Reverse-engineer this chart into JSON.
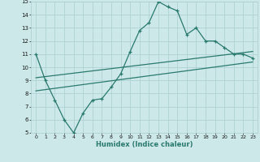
{
  "xlabel": "Humidex (Indice chaleur)",
  "xlim": [
    -0.5,
    23.5
  ],
  "ylim": [
    5,
    15
  ],
  "xticks": [
    0,
    1,
    2,
    3,
    4,
    5,
    6,
    7,
    8,
    9,
    10,
    11,
    12,
    13,
    14,
    15,
    16,
    17,
    18,
    19,
    20,
    21,
    22,
    23
  ],
  "yticks": [
    5,
    6,
    7,
    8,
    9,
    10,
    11,
    12,
    13,
    14,
    15
  ],
  "bg_color": "#cce8e8",
  "grid_color": "#aacece",
  "line_color": "#2a7a6e",
  "line1_x": [
    0,
    1,
    2,
    3,
    4,
    5,
    6,
    7,
    8,
    9,
    10,
    11,
    12,
    13,
    14,
    15,
    16,
    17,
    18,
    19,
    20,
    21,
    22,
    23
  ],
  "line1_y": [
    11,
    9,
    7.5,
    6,
    5,
    6.5,
    7.5,
    7.6,
    8.5,
    9.5,
    11.2,
    12.8,
    13.4,
    15,
    14.6,
    14.3,
    12.5,
    13,
    12,
    12,
    11.5,
    11,
    11,
    10.7
  ],
  "line2_x": [
    0,
    23
  ],
  "line2_y": [
    9.2,
    11.2
  ],
  "line3_x": [
    0,
    23
  ],
  "line3_y": [
    8.2,
    10.4
  ]
}
